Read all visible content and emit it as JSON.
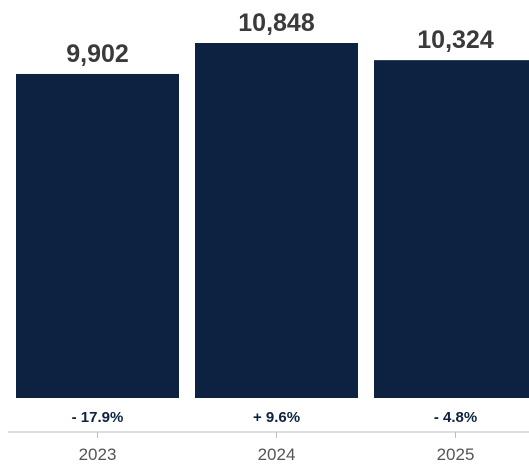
{
  "chart_data": {
    "type": "bar",
    "categories": [
      "2023",
      "2024",
      "2025"
    ],
    "values": [
      9902,
      10848,
      10324
    ],
    "value_labels": [
      "9,902",
      "10,848",
      "10,324"
    ],
    "change_labels": [
      "- 17.9%",
      "+ 9.6%",
      "- 4.8%"
    ],
    "title": "",
    "xlabel": "",
    "ylabel": "",
    "ylim": [
      0,
      10848
    ],
    "grid": false,
    "legend": "none",
    "colors": {
      "bar": "#0c2240",
      "value_label": "#3a3a3a",
      "change_label": "#0c2240",
      "tick_label": "#555555",
      "axis": "#bdbdbd"
    }
  }
}
